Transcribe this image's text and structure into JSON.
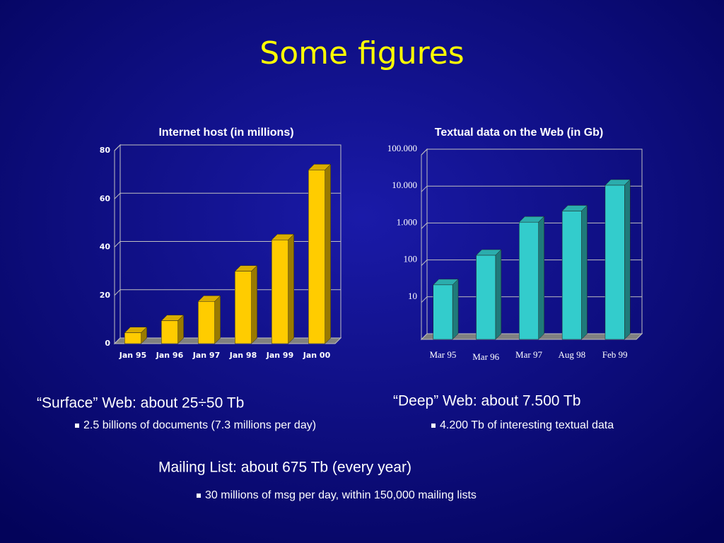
{
  "title": "Some figures",
  "chart_data": [
    {
      "type": "bar",
      "title": "Internet host (in millions)",
      "categories": [
        "Jan 95",
        "Jan 96",
        "Jan 97",
        "Jan 98",
        "Jan 99",
        "Jan 00"
      ],
      "values": [
        4.5,
        9.5,
        17.5,
        30,
        43,
        72
      ],
      "color": "#ffcc00",
      "ylim": [
        0,
        80
      ],
      "yticks": [
        0,
        20,
        40,
        60,
        80
      ],
      "grid": true,
      "log_scale": false
    },
    {
      "type": "bar",
      "title": "Textual data on the Web (in Gb)",
      "categories": [
        "Mar 95",
        "Mar 96",
        "Mar 97",
        "Aug 98",
        "Feb 99"
      ],
      "values": [
        30,
        190,
        1500,
        3000,
        15000
      ],
      "color": "#33cccc",
      "ylim": [
        1,
        100000
      ],
      "yticks": [
        10,
        100,
        {
          "value": 1000,
          "label": "1.000"
        },
        {
          "value": 10000,
          "label": "10.000"
        },
        {
          "value": 100000,
          "label": "100.000"
        }
      ],
      "grid": true,
      "log_scale": true
    }
  ],
  "notes": [
    {
      "heading": "“Surface”  Web: about 25÷50 Tb",
      "bullet": "2.5 billions of documents (7.3 millions per day)"
    },
    {
      "heading": "“Deep”  Web: about 7.500 Tb",
      "bullet": "4.200 Tb of interesting textual data"
    },
    {
      "heading": "Mailing List: about 675 Tb (every year)",
      "bullet": "30 millions of msg per day, within 150,000 mailing lists"
    }
  ]
}
